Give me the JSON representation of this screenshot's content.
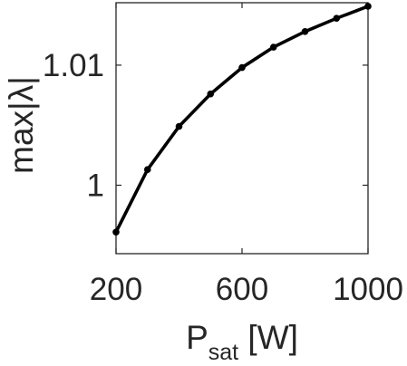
{
  "chart_data": {
    "type": "line",
    "title": "",
    "xlabel": {
      "main": "P",
      "sub": "sat",
      "unit": " [W]"
    },
    "ylabel": "max|λ|",
    "x": [
      200,
      300,
      400,
      500,
      600,
      700,
      800,
      900,
      1000
    ],
    "series": [
      {
        "name": "",
        "values": [
          0.9961,
          1.0013,
          1.0049,
          1.0076,
          1.0098,
          1.0115,
          1.0128,
          1.0139,
          1.0149
        ]
      }
    ],
    "xlim": [
      200,
      1000
    ],
    "ylim": [
      0.9943,
      1.0152
    ],
    "xticks": [
      {
        "value": 200,
        "label": "200"
      },
      {
        "value": 600,
        "label": "600"
      },
      {
        "value": 1000,
        "label": "1000"
      }
    ],
    "yticks": [
      {
        "value": 1.0,
        "label": "1"
      },
      {
        "value": 1.01,
        "label": "1.01"
      }
    ],
    "grid": false,
    "line_color": "#000000",
    "axis_color": "#262626"
  }
}
